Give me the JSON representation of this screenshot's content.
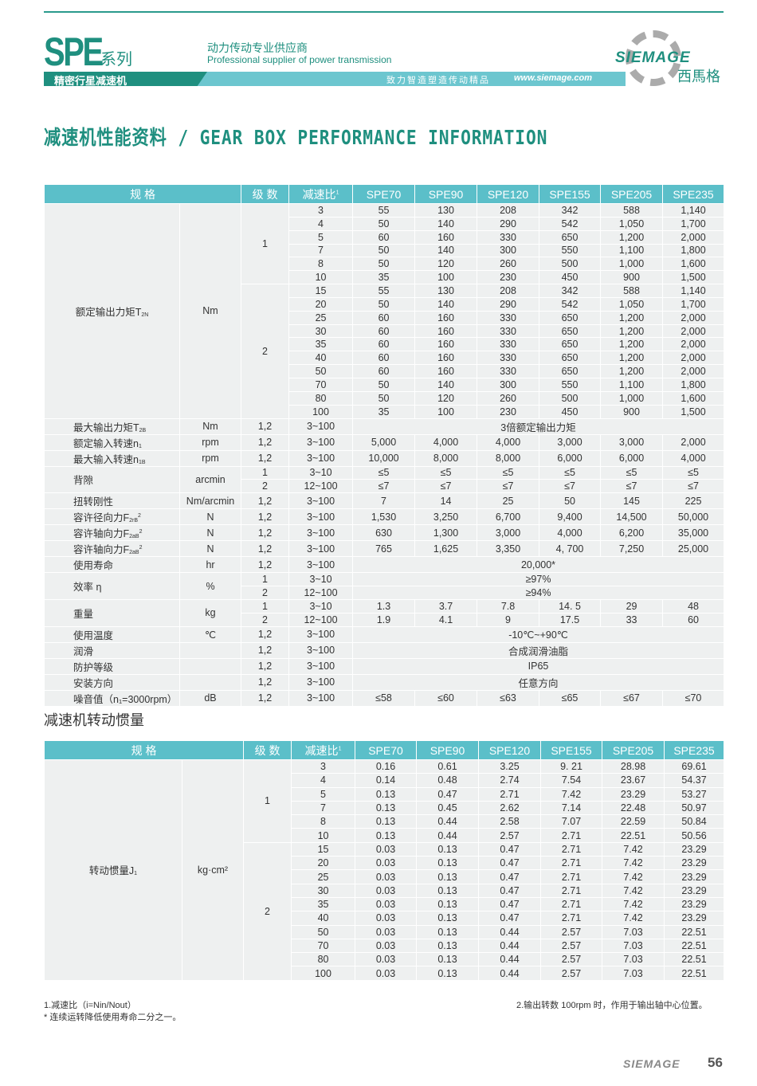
{
  "header": {
    "series": "SPE",
    "series_suffix": "系列",
    "slogan_cn": "动力传动专业供应商",
    "slogan_en": "Professional supplier of power transmission",
    "product": "精密行星减速机",
    "motto": "致力智造塑造传动精品",
    "url": "www.siemage.com",
    "brand": "SIEMAGE",
    "brand_cn": "西馬格"
  },
  "title": "减速机性能资料 / GEAR BOX PERFORMANCE INFORMATION",
  "columns": {
    "spec": "规 格",
    "stage": "级 数",
    "ratio": "减速比",
    "ratio_sup": "1",
    "models": [
      "SPE70",
      "SPE90",
      "SPE120",
      "SPE155",
      "SPE205",
      "SPE235"
    ]
  },
  "perf": [
    {
      "label": "额定输出力矩T",
      "sub": "2N",
      "unit": "Nm",
      "rows": [
        {
          "stage": "1",
          "ratio": "3",
          "values": [
            "55",
            "130",
            "208",
            "342",
            "588",
            "1,140"
          ]
        },
        {
          "stage": "1",
          "ratio": "4",
          "values": [
            "50",
            "140",
            "290",
            "542",
            "1,050",
            "1,700"
          ]
        },
        {
          "stage": "1",
          "ratio": "5",
          "values": [
            "60",
            "160",
            "330",
            "650",
            "1,200",
            "2,000"
          ]
        },
        {
          "stage": "1",
          "ratio": "7",
          "values": [
            "50",
            "140",
            "300",
            "550",
            "1,100",
            "1,800"
          ]
        },
        {
          "stage": "1",
          "ratio": "8",
          "values": [
            "50",
            "120",
            "260",
            "500",
            "1,000",
            "1,600"
          ]
        },
        {
          "stage": "1",
          "ratio": "10",
          "values": [
            "35",
            "100",
            "230",
            "450",
            "900",
            "1,500"
          ]
        },
        {
          "stage": "2",
          "ratio": "15",
          "values": [
            "55",
            "130",
            "208",
            "342",
            "588",
            "1,140"
          ]
        },
        {
          "stage": "2",
          "ratio": "20",
          "values": [
            "50",
            "140",
            "290",
            "542",
            "1,050",
            "1,700"
          ]
        },
        {
          "stage": "2",
          "ratio": "25",
          "values": [
            "60",
            "160",
            "330",
            "650",
            "1,200",
            "2,000"
          ]
        },
        {
          "stage": "2",
          "ratio": "30",
          "values": [
            "60",
            "160",
            "330",
            "650",
            "1,200",
            "2,000"
          ]
        },
        {
          "stage": "2",
          "ratio": "35",
          "values": [
            "60",
            "160",
            "330",
            "650",
            "1,200",
            "2,000"
          ]
        },
        {
          "stage": "2",
          "ratio": "40",
          "values": [
            "60",
            "160",
            "330",
            "650",
            "1,200",
            "2,000"
          ]
        },
        {
          "stage": "2",
          "ratio": "50",
          "values": [
            "60",
            "160",
            "330",
            "650",
            "1,200",
            "2,000"
          ]
        },
        {
          "stage": "2",
          "ratio": "70",
          "values": [
            "50",
            "140",
            "300",
            "550",
            "1,100",
            "1,800"
          ]
        },
        {
          "stage": "2",
          "ratio": "80",
          "values": [
            "50",
            "120",
            "260",
            "500",
            "1,000",
            "1,600"
          ]
        },
        {
          "stage": "2",
          "ratio": "100",
          "values": [
            "35",
            "100",
            "230",
            "450",
            "900",
            "1,500"
          ]
        }
      ]
    },
    {
      "label": "最大输出力矩T",
      "sub": "2B",
      "unit": "Nm",
      "rows": [
        {
          "stage": "1,2",
          "ratio": "3~100",
          "merged": "3倍额定输出力矩"
        }
      ]
    },
    {
      "label": "额定输入转速n",
      "sub": "1",
      "unit": "rpm",
      "rows": [
        {
          "stage": "1,2",
          "ratio": "3~100",
          "values": [
            "5,000",
            "4,000",
            "4,000",
            "3,000",
            "3,000",
            "2,000"
          ]
        }
      ]
    },
    {
      "label": "最大输入转速n",
      "sub": "1B",
      "unit": "rpm",
      "rows": [
        {
          "stage": "1,2",
          "ratio": "3~100",
          "values": [
            "10,000",
            "8,000",
            "8,000",
            "6,000",
            "6,000",
            "4,000"
          ]
        }
      ]
    },
    {
      "label": "背隙",
      "sub": "",
      "unit": "arcmin",
      "rows": [
        {
          "stage": "1",
          "ratio": "3~10",
          "values": [
            "≤5",
            "≤5",
            "≤5",
            "≤5",
            "≤5",
            "≤5"
          ]
        },
        {
          "stage": "2",
          "ratio": "12~100",
          "values": [
            "≤7",
            "≤7",
            "≤7",
            "≤7",
            "≤7",
            "≤7"
          ]
        }
      ]
    },
    {
      "label": "扭转刚性",
      "sub": "",
      "unit": "Nm/arcmin",
      "rows": [
        {
          "stage": "1,2",
          "ratio": "3~100",
          "values": [
            "7",
            "14",
            "25",
            "50",
            "145",
            "225"
          ]
        }
      ]
    },
    {
      "label": "容许径向力F",
      "sub": "2rB",
      "sup": "2",
      "unit": "N",
      "rows": [
        {
          "stage": "1,2",
          "ratio": "3~100",
          "values": [
            "1,530",
            "3,250",
            "6,700",
            "9,400",
            "14,500",
            "50,000"
          ]
        }
      ]
    },
    {
      "label": "容许轴向力F",
      "sub": "2aB",
      "sup": "2",
      "unit": "N",
      "rows": [
        {
          "stage": "1,2",
          "ratio": "3~100",
          "values": [
            "630",
            "1,300",
            "3,000",
            "4,000",
            "6,200",
            "35,000"
          ]
        }
      ]
    },
    {
      "label": "容许轴向力F",
      "sub": "2aB",
      "sup": "2",
      "unit": "N",
      "rows": [
        {
          "stage": "1,2",
          "ratio": "3~100",
          "values": [
            "765",
            "1,625",
            "3,350",
            "4, 700",
            "7,250",
            "25,000"
          ]
        }
      ]
    },
    {
      "label": "使用寿命",
      "sub": "",
      "unit": "hr",
      "rows": [
        {
          "stage": "1,2",
          "ratio": "3~100",
          "merged": "20,000*"
        }
      ]
    },
    {
      "label": "效率 η",
      "sub": "",
      "unit": "%",
      "rows": [
        {
          "stage": "1",
          "ratio": "3~10",
          "merged": "≥97%"
        },
        {
          "stage": "2",
          "ratio": "12~100",
          "merged": "≥94%"
        }
      ]
    },
    {
      "label": "重量",
      "sub": "",
      "unit": "kg",
      "rows": [
        {
          "stage": "1",
          "ratio": "3~10",
          "values": [
            "1.3",
            "3.7",
            "7.8",
            "14. 5",
            "29",
            "48"
          ]
        },
        {
          "stage": "2",
          "ratio": "12~100",
          "values": [
            "1.9",
            "4.1",
            "9",
            "17.5",
            "33",
            "60"
          ]
        }
      ]
    },
    {
      "label": "使用温度",
      "sub": "",
      "unit": "℃",
      "rows": [
        {
          "stage": "1,2",
          "ratio": "3~100",
          "merged": "-10℃~+90℃"
        }
      ]
    },
    {
      "label": "润滑",
      "sub": "",
      "unit": "",
      "rows": [
        {
          "stage": "1,2",
          "ratio": "3~100",
          "merged": "合成润滑油脂"
        }
      ]
    },
    {
      "label": "防护等级",
      "sub": "",
      "unit": "",
      "rows": [
        {
          "stage": "1,2",
          "ratio": "3~100",
          "merged": "IP65"
        }
      ]
    },
    {
      "label": "安装方向",
      "sub": "",
      "unit": "",
      "rows": [
        {
          "stage": "1,2",
          "ratio": "3~100",
          "merged": "任意方向"
        }
      ]
    },
    {
      "label": "噪音值（n₁=3000rpm）",
      "sub": "",
      "unit": "dB",
      "rows": [
        {
          "stage": "1,2",
          "ratio": "3~100",
          "values": [
            "≤58",
            "≤60",
            "≤63",
            "≤65",
            "≤67",
            "≤70"
          ]
        }
      ]
    }
  ],
  "inertia_title": "减速机转动惯量",
  "inertia": [
    {
      "label": "转动惯量J",
      "sub": "1",
      "unit": "kg·cm²",
      "rows": [
        {
          "stage": "1",
          "ratio": "3",
          "values": [
            "0.16",
            "0.61",
            "3.25",
            "9. 21",
            "28.98",
            "69.61"
          ]
        },
        {
          "stage": "1",
          "ratio": "4",
          "values": [
            "0.14",
            "0.48",
            "2.74",
            "7.54",
            "23.67",
            "54.37"
          ]
        },
        {
          "stage": "1",
          "ratio": "5",
          "values": [
            "0.13",
            "0.47",
            "2.71",
            "7.42",
            "23.29",
            "53.27"
          ]
        },
        {
          "stage": "1",
          "ratio": "7",
          "values": [
            "0.13",
            "0.45",
            "2.62",
            "7.14",
            "22.48",
            "50.97"
          ]
        },
        {
          "stage": "1",
          "ratio": "8",
          "values": [
            "0.13",
            "0.44",
            "2.58",
            "7.07",
            "22.59",
            "50.84"
          ]
        },
        {
          "stage": "1",
          "ratio": "10",
          "values": [
            "0.13",
            "0.44",
            "2.57",
            "2.71",
            "22.51",
            "50.56"
          ]
        },
        {
          "stage": "2",
          "ratio": "15",
          "values": [
            "0.03",
            "0.13",
            "0.47",
            "2.71",
            "7.42",
            "23.29"
          ]
        },
        {
          "stage": "2",
          "ratio": "20",
          "values": [
            "0.03",
            "0.13",
            "0.47",
            "2.71",
            "7.42",
            "23.29"
          ]
        },
        {
          "stage": "2",
          "ratio": "25",
          "values": [
            "0.03",
            "0.13",
            "0.47",
            "2.71",
            "7.42",
            "23.29"
          ]
        },
        {
          "stage": "2",
          "ratio": "30",
          "values": [
            "0.03",
            "0.13",
            "0.47",
            "2.71",
            "7.42",
            "23.29"
          ]
        },
        {
          "stage": "2",
          "ratio": "35",
          "values": [
            "0.03",
            "0.13",
            "0.47",
            "2.71",
            "7.42",
            "23.29"
          ]
        },
        {
          "stage": "2",
          "ratio": "40",
          "values": [
            "0.03",
            "0.13",
            "0.47",
            "2.71",
            "7.42",
            "23.29"
          ]
        },
        {
          "stage": "2",
          "ratio": "50",
          "values": [
            "0.03",
            "0.13",
            "0.44",
            "2.57",
            "7.03",
            "22.51"
          ]
        },
        {
          "stage": "2",
          "ratio": "70",
          "values": [
            "0.03",
            "0.13",
            "0.44",
            "2.57",
            "7.03",
            "22.51"
          ]
        },
        {
          "stage": "2",
          "ratio": "80",
          "values": [
            "0.03",
            "0.13",
            "0.44",
            "2.57",
            "7.03",
            "22.51"
          ]
        },
        {
          "stage": "2",
          "ratio": "100",
          "values": [
            "0.03",
            "0.13",
            "0.44",
            "2.57",
            "7.03",
            "22.51"
          ]
        }
      ]
    }
  ],
  "footnotes": {
    "n1": "1.减速比（i=Nin/Nout）",
    "n2": "* 连续运转降低使用寿命二分之一。",
    "n3": "2.输出转数 100rpm 时，作用于输出轴中心位置。"
  },
  "footer": {
    "brand": "SIEMAGE",
    "page": "56"
  }
}
